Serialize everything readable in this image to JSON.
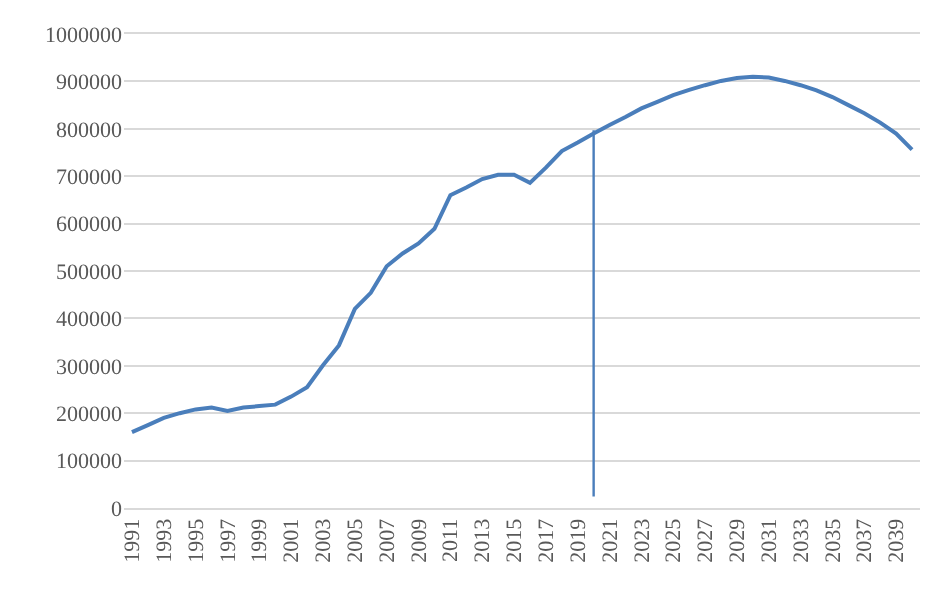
{
  "chart_data": {
    "type": "line",
    "x": [
      1991,
      1992,
      1993,
      1994,
      1995,
      1996,
      1997,
      1998,
      1999,
      2000,
      2001,
      2002,
      2003,
      2004,
      2005,
      2006,
      2007,
      2008,
      2009,
      2010,
      2011,
      2012,
      2013,
      2014,
      2015,
      2016,
      2017,
      2018,
      2019,
      2020,
      2021,
      2022,
      2023,
      2024,
      2025,
      2026,
      2027,
      2028,
      2029,
      2030,
      2031,
      2032,
      2033,
      2034,
      2035,
      2036,
      2037,
      2038,
      2039,
      2040
    ],
    "series": [
      {
        "color": "#4a7ebb",
        "values": [
          160000,
          175000,
          190000,
          200000,
          208000,
          212000,
          205000,
          212000,
          215000,
          218000,
          235000,
          255000,
          301000,
          343000,
          420000,
          454000,
          510000,
          537000,
          558000,
          589000,
          660000,
          676000,
          694000,
          703000,
          703000,
          686000,
          718000,
          753000,
          771000,
          790000,
          808000,
          825000,
          843000,
          857000,
          871000,
          882000,
          892000,
          901000,
          907000,
          910000,
          908000,
          901000,
          892000,
          881000,
          867000,
          850000,
          833000,
          813000,
          790000,
          756000
        ]
      },
      {
        "type": "line",
        "color": "#4a7ebb",
        "x": [
          2020,
          2020
        ],
        "values": [
          24000,
          797000
        ]
      }
    ],
    "xlim": [
      1990.5,
      2040.5
    ],
    "xticks": [
      1991,
      1993,
      1995,
      1997,
      1999,
      2001,
      2003,
      2005,
      2007,
      2009,
      2011,
      2013,
      2015,
      2017,
      2019,
      2021,
      2023,
      2025,
      2027,
      2029,
      2031,
      2033,
      2035,
      2037,
      2039
    ],
    "ylim": [
      0,
      1000000
    ],
    "yticks": [
      0,
      100000,
      200000,
      300000,
      400000,
      500000,
      600000,
      700000,
      800000,
      900000,
      1000000
    ],
    "grid": "y",
    "marker": "none",
    "line_style": "solid"
  }
}
